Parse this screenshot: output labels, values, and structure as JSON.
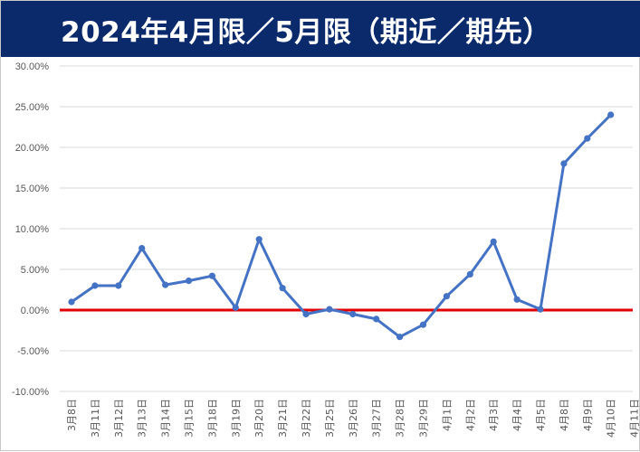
{
  "title": "2024年4月限／5月限（期近／期先）",
  "colors": {
    "header_bg": "#0b2a6b",
    "header_text": "#ffffff",
    "series": "#4472c4",
    "zero_line": "#e00000",
    "grid": "#d9d9d9",
    "tick_text": "#595959"
  },
  "chart_data": {
    "type": "line",
    "title": "2024年4月限／5月限（期近／期先）",
    "xlabel": "",
    "ylabel": "",
    "ylim": [
      -0.1,
      0.3
    ],
    "y_tick_step": 0.05,
    "y_tick_labels": [
      "30.00%",
      "25.00%",
      "20.00%",
      "15.00%",
      "10.00%",
      "5.00%",
      "0.00%",
      "-5.00%",
      "-10.00%"
    ],
    "grid": "horizontal",
    "legend": "none",
    "reference_line": {
      "y": 0,
      "color": "#e00000"
    },
    "categories": [
      "3月8日",
      "3月11日",
      "3月12日",
      "3月13日",
      "3月14日",
      "3月15日",
      "3月18日",
      "3月19日",
      "3月20日",
      "3月21日",
      "3月22日",
      "3月25日",
      "3月26日",
      "3月27日",
      "3月28日",
      "3月29日",
      "4月1日",
      "4月2日",
      "4月3日",
      "4月4日",
      "4月5日",
      "4月8日",
      "4月9日",
      "4月10日",
      "4月11日"
    ],
    "series": [
      {
        "values": [
          0.01,
          0.03,
          0.03,
          0.076,
          0.031,
          0.036,
          0.042,
          0.003,
          0.087,
          0.027,
          -0.005,
          0.001,
          -0.005,
          -0.011,
          -0.033,
          -0.018,
          0.017,
          0.044,
          0.084,
          0.013,
          0.001,
          0.18,
          0.211,
          0.24,
          null
        ]
      }
    ]
  }
}
